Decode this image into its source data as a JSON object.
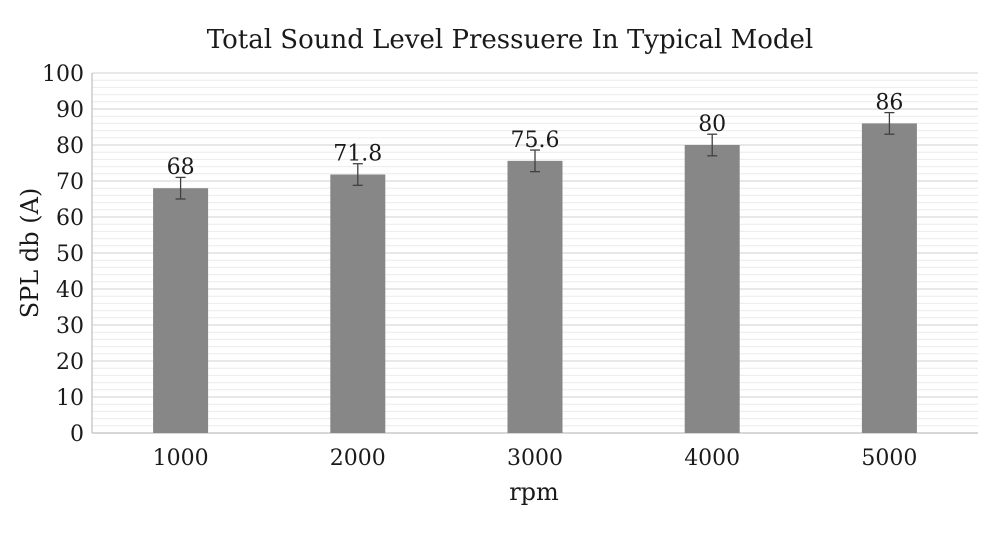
{
  "chart_data": {
    "type": "bar",
    "title": "Total Sound Level Pressuere In Typical Model",
    "xlabel": "rpm",
    "ylabel": "SPL db (A)",
    "categories": [
      "1000",
      "2000",
      "3000",
      "4000",
      "5000"
    ],
    "values": [
      68,
      71.8,
      75.6,
      80,
      86
    ],
    "data_labels": [
      "68",
      "71.8",
      "75.6",
      "80",
      "86"
    ],
    "error_bars": [
      3,
      3,
      3,
      3,
      3
    ],
    "ylim": [
      0,
      100
    ],
    "y_ticks": [
      0,
      10,
      20,
      30,
      40,
      50,
      60,
      70,
      80,
      90,
      100
    ],
    "grid": true,
    "legend": "none",
    "colors": {
      "bar": "#878787",
      "major_grid": "#d9d9d9",
      "minor_grid": "#ececec",
      "axis": "#bfbfbf",
      "error_bar": "#404040",
      "text": "#1a1a1a"
    }
  }
}
